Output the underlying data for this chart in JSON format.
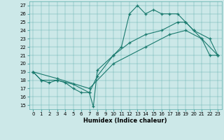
{
  "xlabel": "Humidex (Indice chaleur)",
  "bg_color": "#cce8e8",
  "line_color": "#1a7a6e",
  "xlim": [
    -0.5,
    23.5
  ],
  "ylim": [
    14.5,
    27.5
  ],
  "xticks": [
    0,
    1,
    2,
    3,
    4,
    5,
    6,
    7,
    8,
    9,
    10,
    11,
    12,
    13,
    14,
    15,
    16,
    17,
    18,
    19,
    20,
    21,
    22,
    23
  ],
  "yticks": [
    15,
    16,
    17,
    18,
    19,
    20,
    21,
    22,
    23,
    24,
    25,
    26,
    27
  ],
  "line1": {
    "x": [
      0,
      1,
      2,
      3,
      4,
      5,
      6,
      7,
      7.5,
      8,
      10,
      11,
      12,
      13,
      14,
      15,
      16,
      17,
      18,
      19,
      20,
      21,
      22,
      23
    ],
    "y": [
      19,
      18,
      17.7,
      18,
      17.7,
      17,
      16.5,
      16.5,
      14.8,
      19.2,
      21,
      22,
      26,
      27,
      26,
      26.5,
      26,
      26,
      26,
      25,
      24,
      23,
      21,
      21
    ]
  },
  "line2": {
    "x": [
      0,
      1,
      3,
      5,
      7,
      8,
      10,
      12,
      14,
      16,
      18,
      19,
      20,
      22,
      23
    ],
    "y": [
      19,
      18,
      18,
      17.5,
      16.5,
      18.5,
      21,
      22.5,
      23.5,
      24,
      25,
      25,
      24,
      23,
      21
    ]
  },
  "line3": {
    "x": [
      0,
      3,
      7,
      10,
      14,
      17,
      19,
      21,
      23
    ],
    "y": [
      19,
      18.2,
      17,
      20,
      22,
      23.5,
      24,
      23,
      21
    ]
  }
}
